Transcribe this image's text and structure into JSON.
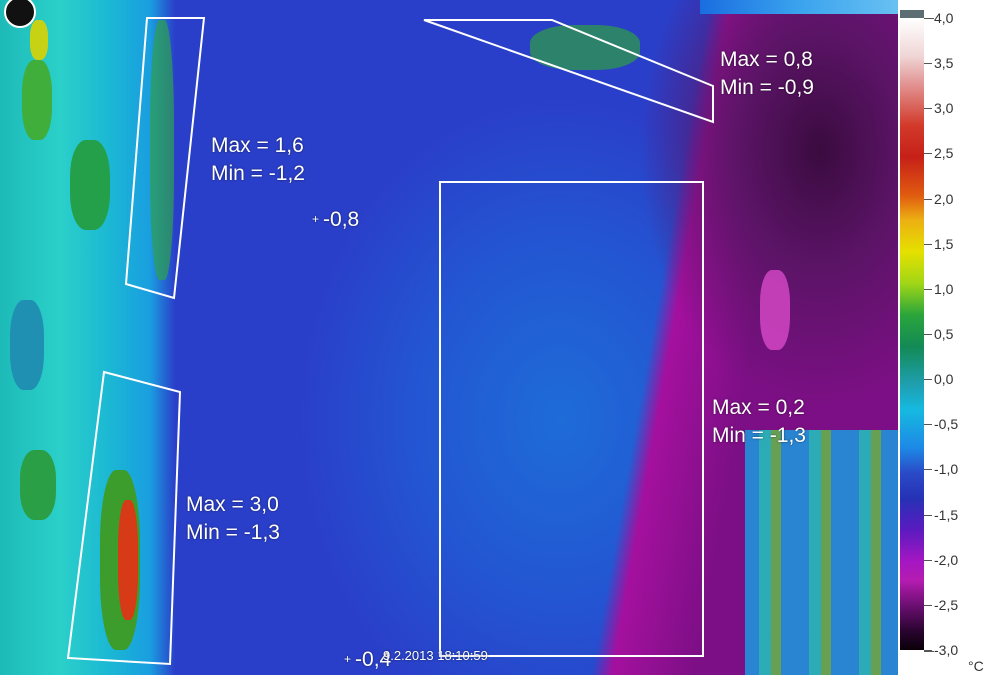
{
  "image": {
    "description_free": true,
    "timestamp": "9.2.2013 18:10:59"
  },
  "measurements": {
    "roi_top_left": {
      "max": "Max = 1,6",
      "min": "Min = -1,2"
    },
    "roi_top_right": {
      "max": "Max = 0,8",
      "min": "Min = -0,9"
    },
    "roi_bottom_left": {
      "max": "Max = 3,0",
      "min": "Min = -1,3"
    },
    "roi_center": {
      "max": "Max = 0,2",
      "min": "Min = -1,3"
    },
    "spot_1": "-0,8",
    "spot_2": "-0,4"
  },
  "scale": {
    "unit": "°C",
    "ticks": [
      "4,0",
      "3,5",
      "3,0",
      "2,5",
      "2,0",
      "1,5",
      "1,0",
      "0,5",
      "0,0",
      "-0,5",
      "-1,0",
      "-1,5",
      "-2,0",
      "-2,5",
      "-3,0"
    ],
    "max": 4.0,
    "min": -3.0
  },
  "colors": {
    "overlay": "#ffffff",
    "palette": "iron-rainbow"
  }
}
